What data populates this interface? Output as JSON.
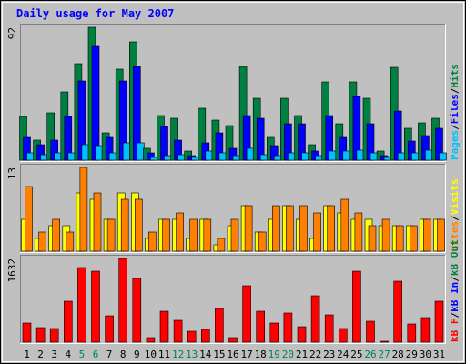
{
  "chart_data": {
    "type": "bar",
    "title": "Daily usage for May 2007",
    "days": [
      "1",
      "2",
      "3",
      "4",
      "5",
      "6",
      "7",
      "8",
      "9",
      "10",
      "11",
      "12",
      "13",
      "14",
      "15",
      "16",
      "17",
      "18",
      "19",
      "20",
      "21",
      "22",
      "23",
      "24",
      "25",
      "26",
      "27",
      "28",
      "29",
      "30",
      "31"
    ],
    "weekend_days": [
      5,
      6,
      12,
      13,
      19,
      20,
      26,
      27
    ],
    "panels": [
      {
        "id": "hits-panel",
        "ymax_label": "92",
        "ymax": 92,
        "legend": [
          "Pages",
          "Files",
          "Hits"
        ],
        "series": [
          {
            "name": "Hits",
            "color": "#008040",
            "values": [
              30,
              14,
              33,
              47,
              67,
              92,
              19,
              63,
              82,
              8,
              31,
              29,
              6,
              36,
              28,
              24,
              65,
              43,
              16,
              43,
              31,
              11,
              54,
              25,
              54,
              43,
              6,
              64,
              22,
              26,
              29
            ]
          },
          {
            "name": "Files",
            "color": "#0000ff",
            "values": [
              16,
              11,
              14,
              30,
              55,
              79,
              16,
              55,
              65,
              5,
              23,
              14,
              3,
              12,
              19,
              8,
              31,
              29,
              10,
              25,
              25,
              6,
              31,
              16,
              44,
              25,
              3,
              34,
              13,
              17,
              22
            ]
          },
          {
            "name": "Pages",
            "color": "#00c0ff",
            "values": [
              5,
              4,
              5,
              5,
              11,
              10,
              5,
              12,
              12,
              2,
              3,
              4,
              2,
              6,
              5,
              3,
              8,
              4,
              3,
              5,
              5,
              3,
              6,
              6,
              7,
              5,
              2,
              5,
              5,
              7,
              5
            ]
          }
        ]
      },
      {
        "id": "visits-panel",
        "ymax_label": "13",
        "ymax": 13,
        "legend": [
          "Sites",
          "Visits"
        ],
        "series": [
          {
            "name": "Visits",
            "color": "#ffff00",
            "values": [
              5,
              2,
              4,
              4,
              9,
              8,
              5,
              9,
              9,
              2,
              5,
              5,
              2,
              5,
              1,
              4,
              7,
              3,
              5,
              7,
              5,
              2,
              7,
              6,
              5,
              5,
              4,
              4,
              4,
              5,
              5
            ]
          },
          {
            "name": "Sites",
            "color": "#ff8000",
            "values": [
              10,
              3,
              5,
              3,
              13,
              9,
              5,
              8,
              8,
              3,
              5,
              6,
              5,
              5,
              2,
              5,
              7,
              3,
              7,
              7,
              7,
              6,
              7,
              8,
              6,
              4,
              5,
              4,
              4,
              5,
              5
            ]
          }
        ]
      },
      {
        "id": "kbytes-panel",
        "ymax_label": "1632",
        "ymax": 1632,
        "legend": [
          "kB F",
          "kB In",
          "kB Out"
        ],
        "series": [
          {
            "name": "kB F",
            "color": "#ff0000",
            "values": [
              380,
              280,
              260,
              800,
              1450,
              1380,
              520,
              1632,
              1250,
              90,
              600,
              420,
              220,
              240,
              650,
              90,
              1100,
              600,
              380,
              560,
              300,
              900,
              540,
              260,
              1380,
              400,
              10,
              1180,
              350,
              480,
              800
            ]
          }
        ]
      }
    ],
    "days_axis_label": "",
    "bar_outline": "#000000"
  },
  "page": {
    "title": "Daily usage for May 2007"
  }
}
